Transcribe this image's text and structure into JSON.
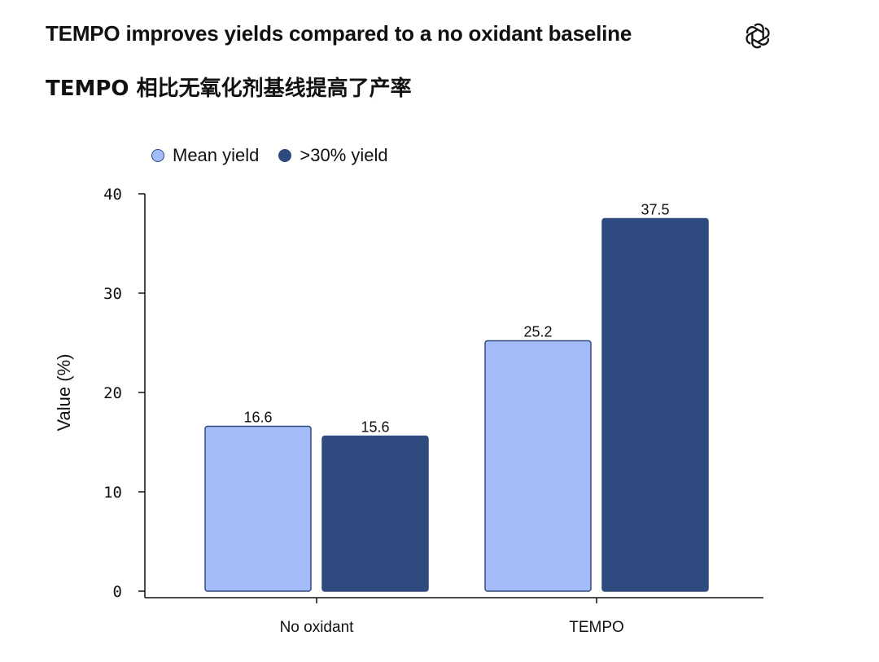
{
  "header": {
    "title": "TEMPO improves yields compared to a no oxidant baseline",
    "subtitle": "TEMPO 相比无氧化剂基线提高了产率",
    "logo_icon": "openai-logo-icon"
  },
  "chart_data": {
    "type": "bar",
    "title": "TEMPO improves yields compared to a no oxidant baseline",
    "subtitle": "TEMPO 相比无氧化剂基线提高了产率",
    "categories": [
      "No oxidant",
      "TEMPO"
    ],
    "series": [
      {
        "name": "Mean yield",
        "values": [
          16.6,
          25.2
        ],
        "color": "#a4bdfa"
      },
      {
        "name": ">30% yield",
        "values": [
          15.6,
          37.5
        ],
        "color": "#2f4a7f"
      }
    ],
    "xlabel": "",
    "ylabel": "Value (%)",
    "ylim": [
      0,
      40
    ],
    "yticks": [
      "0",
      "10",
      "20",
      "30",
      "40"
    ],
    "data_labels": [
      [
        "16.6",
        "25.2"
      ],
      [
        "15.6",
        "37.5"
      ]
    ],
    "grid": false,
    "legend_position": "top-left"
  }
}
